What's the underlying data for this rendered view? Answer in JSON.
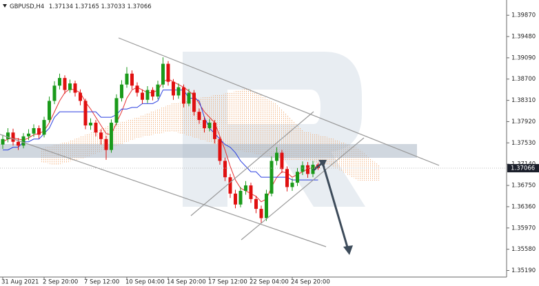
{
  "chart_data": {
    "type": "candlestick",
    "title": "GBPUSD,H4",
    "categories": [
      "31 Aug 2021",
      null,
      null,
      null,
      null,
      null,
      null,
      null,
      "2 Sep 20:00",
      null,
      null,
      null,
      null,
      null,
      null,
      null,
      "7 Sep 12:00",
      null,
      null,
      null,
      null,
      null,
      null,
      null,
      "10 Sep 04:00",
      null,
      null,
      null,
      null,
      null,
      null,
      null,
      "14 Sep 20:00",
      null,
      null,
      null,
      null,
      null,
      null,
      null,
      "17 Sep 12:00",
      null,
      null,
      null,
      null,
      null,
      null,
      null,
      "22 Sep 04:00",
      null,
      null,
      null,
      null,
      null,
      null,
      null,
      "24 Sep 20:00",
      null,
      null,
      null,
      null,
      null
    ],
    "open": [
      1.375,
      1.376,
      1.3772,
      1.3755,
      1.3748,
      1.3765,
      1.377,
      1.378,
      1.3768,
      1.3795,
      1.383,
      1.3858,
      1.3872,
      1.385,
      1.3862,
      1.3845,
      1.383,
      1.3785,
      1.379,
      1.3772,
      1.376,
      1.374,
      1.379,
      1.3835,
      1.386,
      1.388,
      1.3858,
      1.3845,
      1.3832,
      1.385,
      1.3838,
      1.386,
      1.3898,
      1.3865,
      1.384,
      1.3855,
      1.3825,
      1.3845,
      1.381,
      1.3795,
      1.378,
      1.379,
      1.376,
      1.372,
      1.369,
      1.366,
      1.364,
      1.3665,
      1.3675,
      1.365,
      1.3632,
      1.3615,
      1.366,
      1.372,
      1.3735,
      1.3705,
      1.3672,
      1.368,
      1.37,
      1.3712,
      1.3696,
      1.37134
    ],
    "high": [
      1.3768,
      1.378,
      1.3779,
      1.3762,
      1.3771,
      1.3778,
      1.3787,
      1.3785,
      1.3801,
      1.3838,
      1.3866,
      1.388,
      1.3877,
      1.3869,
      1.3867,
      1.3851,
      1.3834,
      1.3798,
      1.3795,
      1.3778,
      1.3766,
      1.3796,
      1.3842,
      1.3868,
      1.3892,
      1.3886,
      1.3864,
      1.3851,
      1.3857,
      1.3855,
      1.3867,
      1.391,
      1.3903,
      1.387,
      1.3862,
      1.386,
      1.3852,
      1.385,
      1.3816,
      1.3801,
      1.3797,
      1.3795,
      1.3765,
      1.3726,
      1.3696,
      1.3667,
      1.3672,
      1.3683,
      1.368,
      1.3656,
      1.3638,
      1.3667,
      1.3728,
      1.3745,
      1.374,
      1.371,
      1.3688,
      1.3707,
      1.3719,
      1.3718,
      1.372,
      1.37165
    ],
    "low": [
      1.3742,
      1.3754,
      1.3748,
      1.374,
      1.3743,
      1.3758,
      1.3764,
      1.3761,
      1.3763,
      1.379,
      1.3824,
      1.3851,
      1.3843,
      1.3845,
      1.3838,
      1.3822,
      1.3778,
      1.3777,
      1.3765,
      1.375,
      1.3722,
      1.3735,
      1.3785,
      1.3829,
      1.3854,
      1.3851,
      1.3838,
      1.3825,
      1.3826,
      1.3831,
      1.3833,
      1.3854,
      1.3858,
      1.3832,
      1.3834,
      1.3818,
      1.382,
      1.3803,
      1.3788,
      1.3772,
      1.3774,
      1.3752,
      1.3713,
      1.3683,
      1.3652,
      1.3633,
      1.3635,
      1.3658,
      1.3643,
      1.3624,
      1.3606,
      1.361,
      1.3655,
      1.3712,
      1.3698,
      1.3664,
      1.3665,
      1.3674,
      1.3694,
      1.3689,
      1.369,
      1.37033
    ],
    "close": [
      1.376,
      1.3772,
      1.3755,
      1.3748,
      1.3765,
      1.377,
      1.378,
      1.3768,
      1.3795,
      1.383,
      1.3858,
      1.3872,
      1.385,
      1.3862,
      1.3845,
      1.383,
      1.3785,
      1.379,
      1.3772,
      1.376,
      1.374,
      1.379,
      1.3835,
      1.386,
      1.388,
      1.3858,
      1.3845,
      1.3832,
      1.385,
      1.3838,
      1.386,
      1.3898,
      1.3865,
      1.384,
      1.3855,
      1.3825,
      1.3845,
      1.381,
      1.3795,
      1.378,
      1.379,
      1.376,
      1.372,
      1.369,
      1.366,
      1.364,
      1.3665,
      1.3675,
      1.365,
      1.3632,
      1.3615,
      1.366,
      1.372,
      1.3735,
      1.3705,
      1.3672,
      1.368,
      1.37,
      1.3712,
      1.3696,
      1.3713,
      1.37066
    ],
    "up_color": "#1a9a1a",
    "down_color": "#e01010",
    "lines": [
      {
        "color": "#e53030",
        "values": [
          1.3755,
          1.376,
          1.3762,
          1.376,
          1.3758,
          1.3762,
          1.3768,
          1.377,
          1.3775,
          1.379,
          1.381,
          1.383,
          1.3845,
          1.3852,
          1.385,
          1.3845,
          1.3828,
          1.3815,
          1.38,
          1.3785,
          1.377,
          1.3768,
          1.379,
          1.381,
          1.3835,
          1.385,
          1.3855,
          1.385,
          1.3845,
          1.3845,
          1.385,
          1.3865,
          1.387,
          1.3865,
          1.386,
          1.3855,
          1.3848,
          1.384,
          1.3825,
          1.381,
          1.38,
          1.379,
          1.3765,
          1.374,
          1.371,
          1.3685,
          1.367,
          1.3665,
          1.366,
          1.3655,
          1.3645,
          1.365,
          1.3672,
          1.369,
          1.37,
          1.3698,
          1.369,
          1.3695,
          1.37,
          1.3705,
          1.3708,
          1.371
        ]
      },
      {
        "color": "#2a3fe0",
        "values": [
          1.374,
          1.374,
          1.3745,
          1.3745,
          1.3755,
          1.3755,
          1.376,
          1.376,
          1.377,
          1.378,
          1.38,
          1.381,
          1.381,
          1.381,
          1.381,
          1.381,
          1.381,
          1.381,
          1.381,
          1.38,
          1.38,
          1.38,
          1.3805,
          1.3815,
          1.3815,
          1.3818,
          1.3818,
          1.3825,
          1.3825,
          1.3825,
          1.383,
          1.385,
          1.385,
          1.385,
          1.385,
          1.385,
          1.3835,
          1.3835,
          1.383,
          1.38,
          1.378,
          1.377,
          1.376,
          1.375,
          1.3745,
          1.3735,
          1.372,
          1.371,
          1.37,
          1.37,
          1.369,
          1.369,
          1.369,
          1.369,
          1.369,
          1.369,
          1.3685,
          1.3685,
          1.3685,
          1.3685,
          1.3685,
          1.3685
        ]
      }
    ],
    "ylim": [
      1.3507,
      1.4015
    ],
    "yticks": [
      {
        "value": 1.3987,
        "label": "1.39870"
      },
      {
        "value": 1.3948,
        "label": "1.39480"
      },
      {
        "value": 1.3909,
        "label": "1.39090"
      },
      {
        "value": 1.387,
        "label": "1.38700"
      },
      {
        "value": 1.3831,
        "label": "1.38310"
      },
      {
        "value": 1.3792,
        "label": "1.37920"
      },
      {
        "value": 1.3753,
        "label": "1.37530"
      },
      {
        "value": 1.3714,
        "label": "1.37140"
      },
      {
        "value": 1.3675,
        "label": "1.36750"
      },
      {
        "value": 1.3636,
        "label": "1.36360"
      },
      {
        "value": 1.3597,
        "label": "1.35970"
      },
      {
        "value": 1.3558,
        "label": "1.35580"
      },
      {
        "value": 1.3519,
        "label": "1.35190"
      }
    ],
    "grid": false
  }
}
